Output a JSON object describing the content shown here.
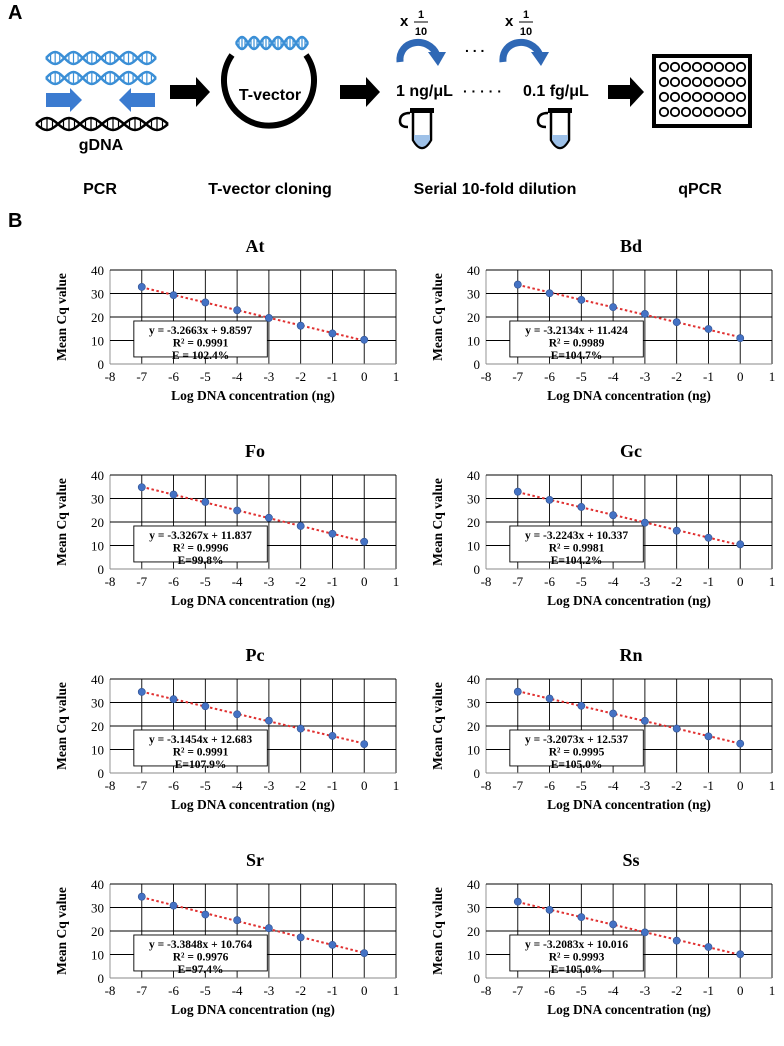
{
  "panel_a": {
    "letter": "A",
    "gdna_label": "gDNA",
    "tvector_label": "T-vector",
    "dilution_factor_prefix": "x",
    "dilution_factor_num": "1",
    "dilution_factor_den": "10",
    "dots_top": ". . .",
    "conc_start": "1 ng/μL",
    "dots_mid": "· · · · ·",
    "conc_end": "0.1 fg/μL",
    "steps": [
      "PCR",
      "T-vector cloning",
      "Serial 10-fold dilution",
      "qPCR"
    ]
  },
  "panel_b": {
    "letter": "B"
  },
  "chart_data": [
    {
      "type": "scatter",
      "title": "At",
      "xlabel": "Log DNA concentration (ng)",
      "ylabel": "Mean Cq value",
      "xlim": [
        -8,
        1
      ],
      "ylim": [
        0,
        40
      ],
      "x": [
        -7,
        -6,
        -5,
        -4,
        -3,
        -2,
        -1,
        0
      ],
      "y": [
        32.8,
        29.3,
        26.2,
        22.9,
        19.6,
        16.3,
        13.0,
        10.3
      ],
      "trendline": "linear dotted red",
      "equation": "y = -3.2663x + 9.8597",
      "r2": "R² = 0.9991",
      "efficiency": "E = 102.4%",
      "grid": true
    },
    {
      "type": "scatter",
      "title": "Bd",
      "xlabel": "Log DNA concentration (ng)",
      "ylabel": "Mean Cq value",
      "xlim": [
        -8,
        1
      ],
      "ylim": [
        0,
        40
      ],
      "x": [
        -7,
        -6,
        -5,
        -4,
        -3,
        -2,
        -1,
        0
      ],
      "y": [
        33.8,
        30.1,
        27.3,
        24.2,
        21.3,
        17.8,
        14.9,
        11.0
      ],
      "trendline": "linear dotted red",
      "equation": "y = -3.2134x + 11.424",
      "r2": "R² = 0.9989",
      "efficiency": "E=104.7%",
      "grid": true
    },
    {
      "type": "scatter",
      "title": "Fo",
      "xlabel": "Log DNA concentration (ng)",
      "ylabel": "Mean Cq value",
      "xlim": [
        -8,
        1
      ],
      "ylim": [
        0,
        40
      ],
      "x": [
        -7,
        -6,
        -5,
        -4,
        -3,
        -2,
        -1,
        0
      ],
      "y": [
        34.8,
        31.7,
        28.5,
        24.9,
        21.8,
        18.3,
        15.0,
        11.6
      ],
      "trendline": "linear dotted red",
      "equation": "y = -3.3267x + 11.837",
      "r2": "R² = 0.9996",
      "efficiency": "E=99.8%",
      "grid": true
    },
    {
      "type": "scatter",
      "title": "Gc",
      "xlabel": "Log DNA concentration (ng)",
      "ylabel": "Mean Cq value",
      "xlim": [
        -8,
        1
      ],
      "ylim": [
        0,
        40
      ],
      "x": [
        -7,
        -6,
        -5,
        -4,
        -3,
        -2,
        -1,
        0
      ],
      "y": [
        32.9,
        29.4,
        26.4,
        22.9,
        19.7,
        16.3,
        13.3,
        10.5
      ],
      "trendline": "linear dotted red",
      "equation": "y = -3.2243x + 10.337",
      "r2": "R² = 0.9981",
      "efficiency": "E=104.2%",
      "grid": true
    },
    {
      "type": "scatter",
      "title": "Pc",
      "xlabel": "Log DNA concentration (ng)",
      "ylabel": "Mean Cq value",
      "xlim": [
        -8,
        1
      ],
      "ylim": [
        0,
        40
      ],
      "x": [
        -7,
        -6,
        -5,
        -4,
        -3,
        -2,
        -1,
        0
      ],
      "y": [
        34.5,
        31.4,
        28.4,
        25.0,
        22.3,
        18.9,
        15.8,
        12.3
      ],
      "trendline": "linear dotted red",
      "equation": "y = -3.1454x + 12.683",
      "r2": "R² = 0.9991",
      "efficiency": "E=107.9%",
      "grid": true
    },
    {
      "type": "scatter",
      "title": "Rn",
      "xlabel": "Log DNA concentration (ng)",
      "ylabel": "Mean Cq value",
      "xlim": [
        -8,
        1
      ],
      "ylim": [
        0,
        40
      ],
      "x": [
        -7,
        -6,
        -5,
        -4,
        -3,
        -2,
        -1,
        0
      ],
      "y": [
        34.6,
        31.7,
        28.6,
        25.3,
        22.2,
        18.9,
        15.6,
        12.5
      ],
      "trendline": "linear dotted red",
      "equation": "y = -3.2073x + 12.537",
      "r2": "R² = 0.9995",
      "efficiency": "E=105.0%",
      "grid": true
    },
    {
      "type": "scatter",
      "title": "Sr",
      "xlabel": "Log DNA concentration (ng)",
      "ylabel": "Mean Cq value",
      "xlim": [
        -8,
        1
      ],
      "ylim": [
        0,
        40
      ],
      "x": [
        -7,
        -6,
        -5,
        -4,
        -3,
        -2,
        -1,
        0
      ],
      "y": [
        34.6,
        30.8,
        27.0,
        24.6,
        21.2,
        17.3,
        14.1,
        10.6
      ],
      "trendline": "linear dotted red",
      "equation": "y = -3.3848x + 10.764",
      "r2": "R² = 0.9976",
      "efficiency": "E=97.4%",
      "grid": true
    },
    {
      "type": "scatter",
      "title": "Ss",
      "xlabel": "Log DNA concentration (ng)",
      "ylabel": "Mean Cq value",
      "xlim": [
        -8,
        1
      ],
      "ylim": [
        0,
        40
      ],
      "x": [
        -7,
        -6,
        -5,
        -4,
        -3,
        -2,
        -1,
        0
      ],
      "y": [
        32.5,
        29.0,
        25.9,
        22.8,
        19.4,
        15.9,
        13.2,
        10.1
      ],
      "trendline": "linear dotted red",
      "equation": "y = -3.2083x + 10.016",
      "r2": "R² = 0.9993",
      "efficiency": "E=105.0%",
      "grid": true
    }
  ],
  "colors": {
    "point": "#4472c4",
    "trendline": "#e03030",
    "dna": "#3b8fd6",
    "arrow": "#3b7bd0",
    "plate": "#000000"
  }
}
